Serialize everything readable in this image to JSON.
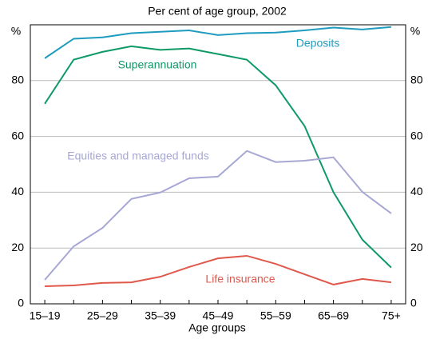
{
  "chart_data": {
    "type": "line",
    "subtitle": "Per cent of age group, 2002",
    "x_label": "Age groups",
    "y_unit_label": "%",
    "categories": [
      "15–19",
      null,
      "25–29",
      null,
      "35–39",
      null,
      "45–49",
      null,
      "55–59",
      null,
      "65–69",
      null,
      "75+"
    ],
    "series": [
      {
        "name": "Deposits",
        "color": "#1f9bc0",
        "values": [
          88,
          95,
          95.5,
          97,
          97.5,
          98,
          96.3,
          97,
          97.2,
          98,
          99,
          98.3,
          99.2
        ]
      },
      {
        "name": "Superannuation",
        "color": "#0e9a66",
        "values": [
          71.7,
          87.5,
          90.3,
          92.3,
          91,
          91.5,
          89.5,
          87.5,
          78.3,
          63.7,
          40,
          23,
          13
        ]
      },
      {
        "name": "Equities and managed funds",
        "color": "#a7a7d4",
        "values": [
          8.6,
          20.6,
          27.2,
          37.6,
          39.9,
          45,
          45.6,
          54.8,
          50.8,
          51.3,
          52.5,
          40.1,
          32.4
        ]
      },
      {
        "name": "Life insurance",
        "color": "#e0584c",
        "values": [
          6.3,
          6.6,
          7.5,
          7.7,
          9.7,
          13.2,
          16.3,
          17.2,
          14.3,
          10.6,
          6.9,
          8.9,
          7.7
        ]
      }
    ],
    "ylim": [
      0,
      100
    ],
    "yticks": [
      0,
      20,
      40,
      60,
      80
    ],
    "grid": true
  }
}
